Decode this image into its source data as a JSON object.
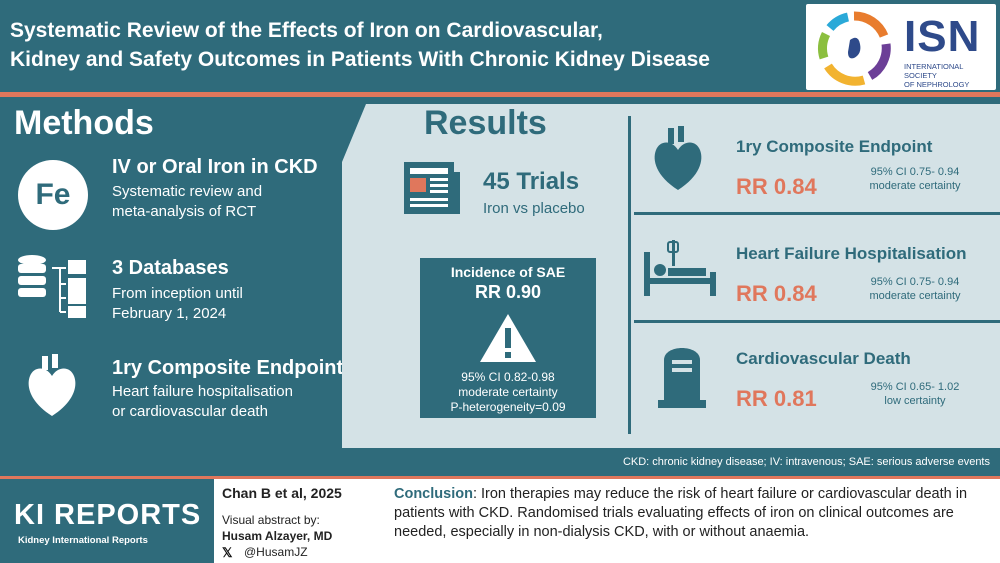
{
  "header": {
    "title_line1": "Systematic Review of the Effects of Iron on Cardiovascular,",
    "title_line2": "Kidney and Safety Outcomes in Patients With Chronic Kidney Disease",
    "logo_text": "ISN",
    "logo_sub1": "INTERNATIONAL SOCIETY",
    "logo_sub2": "OF NEPHROLOGY"
  },
  "methods": {
    "title": "Methods",
    "items": [
      {
        "icon": "iron-fe-icon",
        "icon_text": "Fe",
        "heading": "IV or Oral Iron in CKD",
        "line1": "Systematic review and",
        "line2": "meta-analysis of RCT"
      },
      {
        "icon": "database-icon",
        "heading": "3 Databases",
        "line1": "From inception until",
        "line2": "February 1, 2024"
      },
      {
        "icon": "heart-icon",
        "heading": "1ry Composite Endpoint",
        "line1": "Heart failure hospitalisation",
        "line2": "or cardiovascular death"
      }
    ]
  },
  "results": {
    "title": "Results",
    "trials": {
      "count": "45 Trials",
      "comparison": "Iron vs placebo"
    },
    "sae": {
      "label": "Incidence of SAE",
      "rr": "RR 0.90",
      "ci": "95% CI 0.82-0.98",
      "certainty": "moderate certainty",
      "heterogeneity": "P-heterogeneity=0.09"
    },
    "outcomes": [
      {
        "icon": "heart-icon",
        "title": "1ry Composite Endpoint",
        "rr": "RR 0.84",
        "ci": "95% CI 0.75- 0.94",
        "certainty": "moderate certainty"
      },
      {
        "icon": "hospital-bed-icon",
        "title": "Heart Failure Hospitalisation",
        "rr": "RR 0.84",
        "ci": "95% CI 0.75- 0.94",
        "certainty": "moderate certainty"
      },
      {
        "icon": "tombstone-icon",
        "title": "Cardiovascular Death",
        "rr": "RR 0.81",
        "ci": "95% CI 0.65- 1.02",
        "certainty": "low certainty"
      }
    ],
    "abbreviations": "CKD: chronic kidney disease; IV: intravenous; SAE: serious adverse events"
  },
  "footer": {
    "journal": "KI REPORTS",
    "journal_sub": "Kidney International Reports",
    "citation": "Chan B et al, 2025",
    "visual_abstract_label": "Visual abstract by:",
    "author": "Husam Alzayer, MD",
    "handle": "@HusamJZ",
    "conclusion_label": "Conclusion",
    "conclusion_text": ": Iron therapies may reduce the risk of heart failure or cardiovascular death in patients with CKD. Randomised trials evaluating effects of iron on clinical outcomes are needed, especially in non-dialysis CKD, with or without anaemia."
  },
  "colors": {
    "teal": "#2f6b7b",
    "light": "#d4e2e6",
    "orange": "#e0775c",
    "navy": "#2e4a8a"
  }
}
